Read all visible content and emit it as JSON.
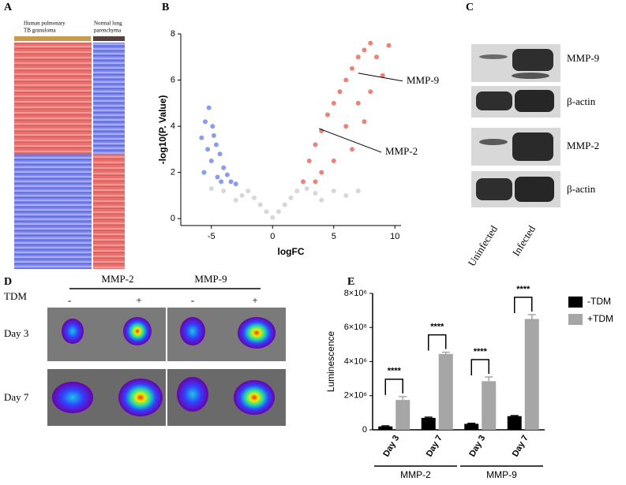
{
  "panel_labels": [
    "A",
    "B",
    "C",
    "D",
    "E"
  ],
  "heatmap": {
    "group_labels": [
      [
        "Human pulmonary",
        "TB granuloma"
      ],
      [
        "Normal lung",
        "parenchyma"
      ]
    ]
  },
  "blot": {
    "bands": [
      "MMP-9",
      "β-actin",
      "MMP-2",
      "β-actin"
    ],
    "lanes": [
      "Uninfected",
      "Infected"
    ]
  },
  "imaging": {
    "columns": [
      "MMP-2",
      "MMP-9"
    ],
    "treatment_label": "TDM",
    "treatments": [
      "-",
      "+",
      "-",
      "+"
    ],
    "rows": [
      "Day 3",
      "Day 7"
    ]
  },
  "chart_data": [
    {
      "type": "scatter",
      "xlabel": "logFC",
      "ylabel": "-log10(P. Value)",
      "xlim": [
        -7.5,
        10.5
      ],
      "ylim": [
        -0.3,
        8
      ],
      "xticks": [
        -5,
        0,
        5,
        10
      ],
      "yticks": [
        0,
        2,
        4,
        6,
        8
      ],
      "series": [
        {
          "color": "#bdbdbd",
          "x": [
            0,
            -0.5,
            0.5,
            -1,
            1,
            -1.5,
            1.5,
            -2,
            2,
            -2.5,
            2.8,
            -3,
            3.5,
            4,
            5,
            6,
            -4,
            -5,
            7
          ],
          "y": [
            0.05,
            0.3,
            0.3,
            0.6,
            0.6,
            0.9,
            0.9,
            1.2,
            1.2,
            1.0,
            1.3,
            0.8,
            1.1,
            0.8,
            1.2,
            1.0,
            1.2,
            1.3,
            1.2
          ]
        },
        {
          "color": "#3b5bdb",
          "x": [
            -5.8,
            -5.5,
            -5.2,
            -4.9,
            -4.6,
            -4.3,
            -4.0,
            -3.7,
            -3.4,
            -5.0,
            -4.5,
            -5.6,
            -3.0,
            -4.8,
            -5.3,
            -4.2
          ],
          "y": [
            3.5,
            4.2,
            4.8,
            4.0,
            3.2,
            2.8,
            2.2,
            1.9,
            1.6,
            2.5,
            1.8,
            2.0,
            1.5,
            3.6,
            3.0,
            1.6
          ]
        },
        {
          "color": "#e0301e",
          "x": [
            2.5,
            3,
            3.5,
            4,
            4.5,
            5,
            5.5,
            6,
            6.5,
            7,
            7.5,
            8,
            8.5,
            9,
            6,
            7,
            8,
            5,
            6.5,
            4,
            3.5,
            7.5,
            9.5
          ],
          "y": [
            1.6,
            2.5,
            3.2,
            3.8,
            4.5,
            5,
            5.5,
            6,
            6.5,
            7,
            7.3,
            7.6,
            7.0,
            6.2,
            4,
            5,
            5.5,
            2.5,
            3,
            2,
            1.6,
            4.2,
            7.5
          ]
        }
      ],
      "annotations": [
        {
          "text": "MMP-9",
          "x": 7,
          "y": 6.3
        },
        {
          "text": "MMP-2",
          "x": 3.8,
          "y": 3.9
        }
      ]
    },
    {
      "type": "bar",
      "ylabel": "Luminescence",
      "categories": [
        "Day 3",
        "Day 7",
        "Day 3",
        "Day 7"
      ],
      "groups": [
        "MMP-2",
        "MMP-9"
      ],
      "ylim": [
        0,
        8000000
      ],
      "yticks": [
        0,
        {
          "value": 2000000,
          "label": "2×10⁶"
        },
        {
          "value": 4000000,
          "label": "4×10⁶"
        },
        {
          "value": 6000000,
          "label": "6×10⁶"
        },
        {
          "value": 8000000,
          "label": "8×10⁶"
        }
      ],
      "series": [
        {
          "name": "-TDM",
          "color": "#000000",
          "values": [
            200000,
            700000,
            350000,
            800000
          ],
          "errors": [
            30000,
            40000,
            30000,
            30000
          ]
        },
        {
          "name": "+TDM",
          "color": "#a6a6a6",
          "values": [
            1750000,
            4450000,
            2850000,
            6500000
          ],
          "errors": [
            200000,
            100000,
            250000,
            250000
          ]
        }
      ],
      "significance": [
        "****",
        "****",
        "****",
        "****"
      ]
    }
  ]
}
